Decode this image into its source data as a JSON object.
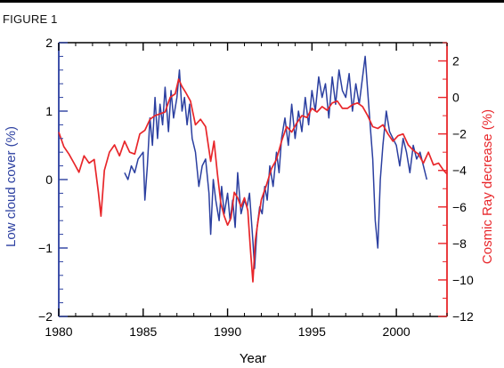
{
  "figure_label": "FIGURE 1",
  "chart_data": {
    "type": "line",
    "title": "",
    "xlabel": "Year",
    "ylabel_left": "Low cloud cover (%)",
    "ylabel_right": "Cosmic Ray decrease (%)",
    "xlim": [
      1980,
      2003
    ],
    "ylim_left": [
      -2,
      2
    ],
    "ylim_right": [
      -12,
      3
    ],
    "x_ticks": [
      1980,
      1985,
      1990,
      1995,
      2000
    ],
    "x_tick_labels": [
      "1980",
      "1985",
      "1990",
      "1995",
      "2000"
    ],
    "y_left_ticks": [
      -2,
      -1,
      0,
      1,
      2
    ],
    "y_left_tick_labels": [
      "−2",
      "−1",
      "0",
      "1",
      "2"
    ],
    "y_right_ticks": [
      2,
      0,
      -2,
      -4,
      -6,
      -8,
      -10,
      -12
    ],
    "y_right_tick_labels": [
      "2",
      "0",
      "−2",
      "−4",
      "−6",
      "−8",
      "−10",
      "−12"
    ],
    "grid": false,
    "colors": {
      "left_axis": "#2b3fa0",
      "right_axis": "#e8262a",
      "frame": "#000000"
    },
    "series": [
      {
        "axis": "left",
        "color": "#2b3fa0",
        "x": [
          1983.9,
          1984.1,
          1984.3,
          1984.5,
          1984.7,
          1985.0,
          1985.1,
          1985.25,
          1985.4,
          1985.55,
          1985.7,
          1985.85,
          1986.0,
          1986.15,
          1986.3,
          1986.5,
          1986.65,
          1986.8,
          1987.0,
          1987.15,
          1987.3,
          1987.45,
          1987.6,
          1987.75,
          1987.9,
          1988.1,
          1988.3,
          1988.5,
          1988.7,
          1988.9,
          1989.0,
          1989.15,
          1989.3,
          1989.5,
          1989.65,
          1989.8,
          1990.0,
          1990.15,
          1990.3,
          1990.45,
          1990.6,
          1990.8,
          1991.0,
          1991.15,
          1991.3,
          1991.5,
          1991.6,
          1991.75,
          1991.9,
          1992.05,
          1992.2,
          1992.35,
          1992.5,
          1992.7,
          1992.9,
          1993.05,
          1993.2,
          1993.4,
          1993.6,
          1993.8,
          1994.0,
          1994.2,
          1994.4,
          1994.6,
          1994.8,
          1995.0,
          1995.2,
          1995.4,
          1995.6,
          1995.8,
          1996.0,
          1996.2,
          1996.4,
          1996.6,
          1996.8,
          1997.0,
          1997.2,
          1997.4,
          1997.6,
          1997.8,
          1998.0,
          1998.15,
          1998.3,
          1998.45,
          1998.6,
          1998.75,
          1998.9,
          1999.05,
          1999.2,
          1999.4,
          1999.6,
          1999.8,
          2000.0,
          2000.2,
          2000.4,
          2000.6,
          2000.8,
          2001.0,
          2001.2,
          2001.4,
          2001.6,
          2001.8
        ],
        "values": [
          0.1,
          0.0,
          0.2,
          0.1,
          0.3,
          0.4,
          -0.3,
          0.2,
          0.9,
          0.5,
          1.2,
          0.6,
          1.1,
          0.8,
          1.35,
          0.7,
          1.3,
          0.9,
          1.2,
          1.6,
          1.0,
          1.2,
          0.8,
          1.1,
          0.6,
          0.4,
          -0.1,
          0.2,
          0.3,
          -0.2,
          -0.8,
          0.0,
          -0.3,
          -0.6,
          -0.1,
          -0.5,
          -0.2,
          -0.6,
          -0.3,
          -0.7,
          0.1,
          -0.5,
          -0.3,
          -0.4,
          -0.2,
          -0.9,
          -1.3,
          -0.7,
          -0.4,
          -0.5,
          -0.1,
          -0.3,
          0.2,
          -0.1,
          0.4,
          0.1,
          0.6,
          0.9,
          0.5,
          1.1,
          0.6,
          1.0,
          0.7,
          1.2,
          0.8,
          1.3,
          1.0,
          1.5,
          1.2,
          1.4,
          0.9,
          1.5,
          1.1,
          1.6,
          1.3,
          1.2,
          1.55,
          1.0,
          1.4,
          1.1,
          1.5,
          1.8,
          1.3,
          0.8,
          0.3,
          -0.6,
          -1.0,
          0.0,
          0.5,
          1.0,
          0.7,
          0.6,
          0.5,
          0.2,
          0.6,
          0.4,
          0.1,
          0.5,
          0.3,
          0.4,
          0.2,
          0.0
        ]
      },
      {
        "axis": "right",
        "color": "#e8262a",
        "x": [
          1980.0,
          1980.3,
          1980.6,
          1980.9,
          1981.2,
          1981.5,
          1981.8,
          1982.1,
          1982.35,
          1982.5,
          1982.7,
          1983.0,
          1983.3,
          1983.6,
          1983.9,
          1984.2,
          1984.5,
          1984.8,
          1985.1,
          1985.4,
          1985.7,
          1986.0,
          1986.3,
          1986.6,
          1986.9,
          1987.1,
          1987.3,
          1987.5,
          1987.8,
          1988.1,
          1988.4,
          1988.7,
          1989.0,
          1989.2,
          1989.4,
          1989.6,
          1989.8,
          1990.0,
          1990.2,
          1990.4,
          1990.6,
          1990.8,
          1991.0,
          1991.2,
          1991.35,
          1991.5,
          1991.65,
          1991.8,
          1992.0,
          1992.3,
          1992.6,
          1992.9,
          1993.2,
          1993.5,
          1993.8,
          1994.1,
          1994.4,
          1994.7,
          1995.0,
          1995.3,
          1995.6,
          1995.9,
          1996.2,
          1996.5,
          1996.8,
          1997.1,
          1997.4,
          1997.7,
          1998.0,
          1998.3,
          1998.6,
          1998.9,
          1999.2,
          1999.5,
          1999.8,
          2000.1,
          2000.4,
          2000.7,
          2001.0,
          2001.3,
          2001.6,
          2001.9,
          2002.2,
          2002.5,
          2002.8,
          2003.0
        ],
        "values": [
          -1.9,
          -2.7,
          -3.1,
          -3.6,
          -4.1,
          -3.2,
          -3.6,
          -3.4,
          -5.2,
          -6.5,
          -4.0,
          -3.0,
          -2.6,
          -3.2,
          -2.4,
          -3.0,
          -3.1,
          -2.0,
          -1.8,
          -1.2,
          -1.0,
          -0.9,
          -0.8,
          0.0,
          0.2,
          1.0,
          0.6,
          0.3,
          -0.2,
          -1.5,
          -1.2,
          -1.6,
          -3.5,
          -2.4,
          -4.2,
          -5.8,
          -6.5,
          -7.0,
          -6.6,
          -5.2,
          -5.5,
          -6.0,
          -5.5,
          -6.2,
          -8.3,
          -10.1,
          -7.8,
          -6.8,
          -5.6,
          -4.8,
          -3.9,
          -3.4,
          -2.4,
          -1.6,
          -1.9,
          -1.4,
          -1.0,
          -1.1,
          -0.6,
          -0.8,
          -0.5,
          -0.7,
          -0.3,
          -0.2,
          -0.6,
          -0.6,
          -0.4,
          -0.3,
          -0.5,
          -1.0,
          -1.6,
          -1.7,
          -1.5,
          -2.0,
          -2.4,
          -2.1,
          -2.0,
          -2.6,
          -2.9,
          -3.1,
          -3.6,
          -3.0,
          -3.7,
          -3.6,
          -4.0,
          -4.2
        ]
      }
    ]
  }
}
